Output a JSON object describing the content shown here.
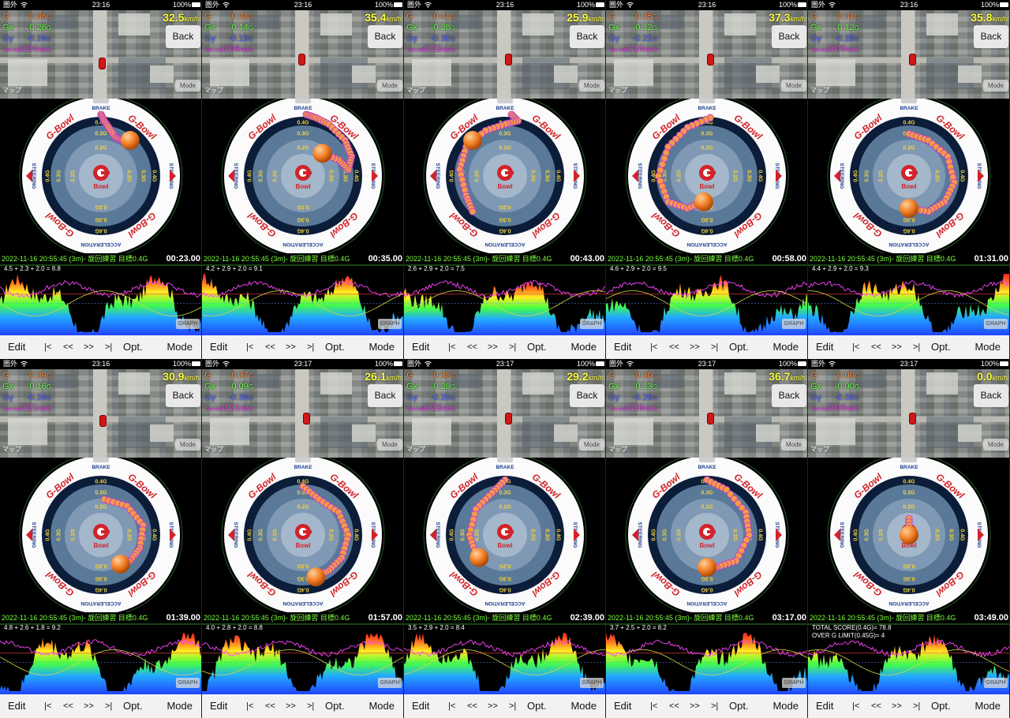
{
  "status": {
    "carrier": "圏外",
    "battery": "100%"
  },
  "labels": {
    "g": "G",
    "gx": "Gx",
    "gy": "Gy",
    "yaw": "Yaw rate",
    "g_unit": "G",
    "yaw_unit": "rad/s",
    "speed_unit": "km/h",
    "back": "Back",
    "map_mode": "Mode",
    "map_attrib": "マップ",
    "graph": "GRAPH",
    "session_title": "2022-11-16 20:55:45 (3m)- 旋回練習 目標0.4G",
    "toolbar": {
      "edit": "Edit",
      "first": "|<",
      "prev": "<<",
      "next": ">>",
      "last": ">|",
      "opt": "Opt.",
      "mode": "Mode"
    }
  },
  "bowl_labels": {
    "top": "BRAKE",
    "bottom": "ACCELERATION",
    "left": "STEERING",
    "right": "STEERING",
    "brand": "G-Bowl",
    "logo_text": "Bowl",
    "ring_02": "0.2G",
    "ring_03": "0.3G",
    "ring_04": "0.4G"
  },
  "colors": {
    "g": "#ff8a3d",
    "gx": "#66ff44",
    "gy": "#5a6bff",
    "yaw": "#ff44ff",
    "speed": "#ffff40",
    "brand_red": "#d2232a",
    "bowl_navy": "#0c1d3a",
    "ball": "#f07a20"
  },
  "frames": [
    {
      "time": "23:16",
      "g": "0.36",
      "gx": "0.26",
      "gy": "-0.24",
      "yaw": "0.34",
      "speed": "32.5",
      "elapsed": "00:23.00",
      "score": "4.5 + 2.3 + 2.0 = 8.8",
      "ball": [
        0.45,
        0.55
      ],
      "trail": [
        [
          0.0,
          0.95
        ],
        [
          0.05,
          0.85
        ],
        [
          0.12,
          0.75
        ],
        [
          0.22,
          0.6
        ],
        [
          0.32,
          0.55
        ],
        [
          0.4,
          0.52
        ],
        [
          0.45,
          0.55
        ]
      ],
      "car": [
        125,
        60
      ]
    },
    {
      "time": "23:16",
      "g": "0.24",
      "gx": "0.14",
      "gy": "-0.19",
      "yaw": "0.09",
      "speed": "35.4",
      "elapsed": "00:35.00",
      "score": "4.2 + 2.9 + 2.0 = 9.1",
      "ball": [
        0.3,
        0.35
      ],
      "trail": [
        [
          0.05,
          0.95
        ],
        [
          0.2,
          0.9
        ],
        [
          0.4,
          0.8
        ],
        [
          0.65,
          0.55
        ],
        [
          0.75,
          0.3
        ],
        [
          0.7,
          0.1
        ],
        [
          0.55,
          0.25
        ],
        [
          0.3,
          0.35
        ]
      ],
      "car": [
        122,
        55
      ]
    },
    {
      "time": "23:16",
      "g": "0.41",
      "gx": "-0.28",
      "gy": "-0.30",
      "yaw": "-0.32",
      "speed": "25.9",
      "elapsed": "00:43.00",
      "score": "2.6 + 2.9 + 2.0 = 7.5",
      "ball": [
        -0.5,
        0.55
      ],
      "trail": [
        [
          0.1,
          0.95
        ],
        [
          0.2,
          0.85
        ],
        [
          0.0,
          0.8
        ],
        [
          -0.3,
          0.7
        ],
        [
          -0.6,
          0.45
        ],
        [
          -0.7,
          0.1
        ],
        [
          -0.6,
          -0.3
        ],
        [
          -0.5,
          -0.55
        ]
      ],
      "car": [
        128,
        55
      ]
    },
    {
      "time": "23:16",
      "g": "0.25",
      "gx": "-0.12",
      "gy": "-0.22",
      "yaw": "-0.14",
      "speed": "37.3",
      "elapsed": "00:58.00",
      "score": "4.6 + 2.9 + 2.0 = 9.5",
      "ball": [
        -0.05,
        -0.4
      ],
      "trail": [
        [
          0.05,
          0.9
        ],
        [
          -0.3,
          0.75
        ],
        [
          -0.6,
          0.45
        ],
        [
          -0.75,
          0.0
        ],
        [
          -0.6,
          -0.4
        ],
        [
          -0.3,
          -0.5
        ],
        [
          -0.05,
          -0.4
        ]
      ],
      "car": [
        128,
        55
      ]
    },
    {
      "time": "23:16",
      "g": "0.31",
      "gx": "0.12",
      "gy": "-0.28",
      "yaw": "0.06",
      "speed": "35.8",
      "elapsed": "01:31.00",
      "score": "4.4 + 2.9 + 2.0 = 9.3",
      "ball": [
        0.0,
        -0.5
      ],
      "trail": [
        [
          0.0,
          0.65
        ],
        [
          0.3,
          0.55
        ],
        [
          0.6,
          0.3
        ],
        [
          0.7,
          -0.1
        ],
        [
          0.55,
          -0.4
        ],
        [
          0.3,
          -0.55
        ],
        [
          0.0,
          -0.5
        ]
      ],
      "car": [
        128,
        55
      ]
    },
    {
      "time": "23:16",
      "g": "0.29",
      "gx": "0.16",
      "gy": "-0.24",
      "yaw": "0.21",
      "speed": "30.9",
      "elapsed": "01:39.00",
      "score": "4.8 + 2.6 + 1.8 = 9.2",
      "ball": [
        0.3,
        -0.45
      ],
      "trail": [
        [
          0.05,
          0.55
        ],
        [
          0.4,
          0.45
        ],
        [
          0.65,
          0.15
        ],
        [
          0.6,
          -0.2
        ],
        [
          0.45,
          -0.4
        ],
        [
          0.3,
          -0.45
        ]
      ],
      "car": [
        126,
        58
      ]
    },
    {
      "time": "23:17",
      "g": "0.37",
      "gx": "0.09",
      "gy": "-0.36",
      "yaw": "0.21",
      "speed": "26.1",
      "elapsed": "01:57.00",
      "score": "4.0 + 2.8 + 2.0 = 8.8",
      "ball": [
        0.2,
        -0.65
      ],
      "trail": [
        [
          0.0,
          0.75
        ],
        [
          0.25,
          0.55
        ],
        [
          0.55,
          0.35
        ],
        [
          0.7,
          0.0
        ],
        [
          0.6,
          -0.35
        ],
        [
          0.4,
          -0.55
        ],
        [
          0.2,
          -0.65
        ]
      ],
      "car": [
        384,
        55
      ]
    },
    {
      "time": "23:17",
      "g": "0.35",
      "gx": "-0.28",
      "gy": "-0.20",
      "yaw": "-0.32",
      "speed": "29.2",
      "elapsed": "02:39.00",
      "score": "3.5 + 2.9 + 2.0 = 8.4",
      "ball": [
        -0.4,
        -0.35
      ],
      "trail": [
        [
          0.0,
          0.85
        ],
        [
          -0.2,
          0.65
        ],
        [
          -0.45,
          0.4
        ],
        [
          -0.55,
          0.0
        ],
        [
          -0.45,
          -0.3
        ],
        [
          -0.4,
          -0.35
        ]
      ],
      "car": [
        128,
        55
      ]
    },
    {
      "time": "23:17",
      "g": "0.30",
      "gx": "0.13",
      "gy": "-0.26",
      "yaw": "0.16",
      "speed": "36.7",
      "elapsed": "03:17.00",
      "score": "3.7 + 2.5 + 2.0 = 8.2",
      "ball": [
        0.0,
        -0.5
      ],
      "trail": [
        [
          0.0,
          0.85
        ],
        [
          0.3,
          0.7
        ],
        [
          0.6,
          0.35
        ],
        [
          0.65,
          0.0
        ],
        [
          0.45,
          -0.4
        ],
        [
          0.15,
          -0.5
        ],
        [
          0.0,
          -0.5
        ]
      ],
      "car": [
        128,
        55
      ]
    },
    {
      "time": "23:17",
      "g": "0.00",
      "gx": "-0.00",
      "gy": "-0.00",
      "yaw": "0.00",
      "speed": "0.0",
      "elapsed": "03:49.00",
      "score": "TOTAL SCORE(0.4G)= 78.8\nOVER G LIMIT(0.45G)= 4",
      "ball": [
        0.0,
        0.0
      ],
      "trail": [
        [
          0.0,
          0.25
        ],
        [
          0.0,
          0.0
        ]
      ],
      "car": [
        128,
        55
      ]
    }
  ]
}
